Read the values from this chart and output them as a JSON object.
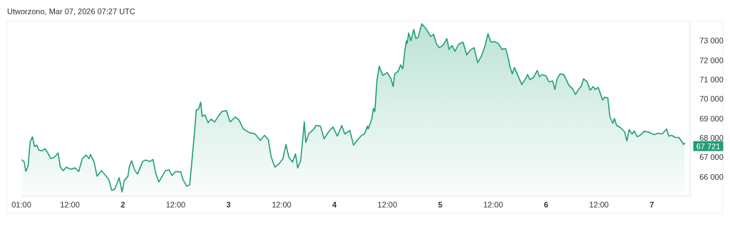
{
  "chart_data": {
    "type": "area",
    "title": "Utworzono, Mar 07, 2026 07:27 UTC",
    "x": [
      "2026-03-01T01:10",
      "2026-03-01T01:40",
      "2026-03-01T02:00",
      "2026-03-01T02:30",
      "2026-03-01T03:00",
      "2026-03-01T03:30",
      "2026-03-01T04:00",
      "2026-03-01T04:30",
      "2026-03-01T05:00",
      "2026-03-01T05:40",
      "2026-03-01T06:20",
      "2026-03-01T07:00",
      "2026-03-01T07:40",
      "2026-03-01T08:30",
      "2026-03-01T09:20",
      "2026-03-01T09:50",
      "2026-03-01T10:30",
      "2026-03-01T11:10",
      "2026-03-01T12:10",
      "2026-03-01T13:10",
      "2026-03-01T14:00",
      "2026-03-01T14:50",
      "2026-03-01T15:40",
      "2026-03-01T16:20",
      "2026-03-01T16:40",
      "2026-03-01T17:30",
      "2026-03-01T18:10",
      "2026-03-01T19:10",
      "2026-03-01T20:00",
      "2026-03-01T20:50",
      "2026-03-01T21:30",
      "2026-03-01T22:10",
      "2026-03-01T22:50",
      "2026-03-01T23:10",
      "2026-03-01T23:50",
      "2026-03-02T00:20",
      "2026-03-02T01:10",
      "2026-03-02T01:30",
      "2026-03-02T02:00",
      "2026-03-02T02:40",
      "2026-03-02T03:20",
      "2026-03-02T04:30",
      "2026-03-02T05:10",
      "2026-03-02T06:10",
      "2026-03-02T06:50",
      "2026-03-02T07:30",
      "2026-03-02T08:10",
      "2026-03-02T08:50",
      "2026-03-02T09:40",
      "2026-03-02T10:30",
      "2026-03-02T11:10",
      "2026-03-02T12:00",
      "2026-03-02T13:10",
      "2026-03-02T13:40",
      "2026-03-02T14:30",
      "2026-03-02T15:10",
      "2026-03-02T15:50",
      "2026-03-02T16:20",
      "2026-03-02T16:40",
      "2026-03-02T17:10",
      "2026-03-02T17:40",
      "2026-03-02T18:00",
      "2026-03-02T18:40",
      "2026-03-02T19:20",
      "2026-03-02T20:00",
      "2026-03-02T20:50",
      "2026-03-02T21:40",
      "2026-03-02T22:30",
      "2026-03-02T23:30",
      "2026-03-03T00:20",
      "2026-03-03T01:30",
      "2026-03-03T02:20",
      "2026-03-03T03:20",
      "2026-03-03T04:40",
      "2026-03-03T06:00",
      "2026-03-03T07:10",
      "2026-03-03T08:10",
      "2026-03-03T09:00",
      "2026-03-03T09:40",
      "2026-03-03T10:30",
      "2026-03-03T11:20",
      "2026-03-03T12:20",
      "2026-03-03T13:00",
      "2026-03-03T13:40",
      "2026-03-03T14:30",
      "2026-03-03T15:10",
      "2026-03-03T15:40",
      "2026-03-03T16:20",
      "2026-03-03T16:50",
      "2026-03-03T17:10",
      "2026-03-03T17:30",
      "2026-03-03T18:10",
      "2026-03-03T19:20",
      "2026-03-03T19:50",
      "2026-03-03T20:50",
      "2026-03-03T21:40",
      "2026-03-03T22:40",
      "2026-03-03T23:40",
      "2026-03-04T00:40",
      "2026-03-04T01:40",
      "2026-03-04T02:20",
      "2026-03-04T03:30",
      "2026-03-04T04:20",
      "2026-03-04T05:10",
      "2026-03-04T06:10",
      "2026-03-04T06:50",
      "2026-03-04T07:30",
      "2026-03-04T07:40",
      "2026-03-04T08:30",
      "2026-03-04T08:50",
      "2026-03-04T09:10",
      "2026-03-04T09:40",
      "2026-03-04T10:10",
      "2026-03-04T10:30",
      "2026-03-04T11:00",
      "2026-03-04T12:00",
      "2026-03-04T12:50",
      "2026-03-04T13:20",
      "2026-03-04T13:40",
      "2026-03-04T14:30",
      "2026-03-04T15:00",
      "2026-03-04T15:30",
      "2026-03-04T16:00",
      "2026-03-04T16:20",
      "2026-03-04T16:30",
      "2026-03-04T16:50",
      "2026-03-04T17:20",
      "2026-03-04T18:00",
      "2026-03-04T18:30",
      "2026-03-04T19:00",
      "2026-03-04T19:30",
      "2026-03-04T19:50",
      "2026-03-04T20:30",
      "2026-03-04T21:00",
      "2026-03-04T21:50",
      "2026-03-04T22:30",
      "2026-03-04T23:10",
      "2026-03-04T23:50",
      "2026-03-05T00:40",
      "2026-03-05T01:30",
      "2026-03-05T02:00",
      "2026-03-05T02:40",
      "2026-03-05T03:20",
      "2026-03-05T04:10",
      "2026-03-05T05:10",
      "2026-03-05T06:00",
      "2026-03-05T06:50",
      "2026-03-05T07:40",
      "2026-03-05T08:30",
      "2026-03-05T09:20",
      "2026-03-05T10:10",
      "2026-03-05T10:50",
      "2026-03-05T11:30",
      "2026-03-05T12:20",
      "2026-03-05T13:10",
      "2026-03-05T14:00",
      "2026-03-05T14:50",
      "2026-03-05T15:20",
      "2026-03-05T15:50",
      "2026-03-05T16:20",
      "2026-03-05T16:50",
      "2026-03-05T17:40",
      "2026-03-05T18:30",
      "2026-03-05T19:20",
      "2026-03-05T19:50",
      "2026-03-05T20:20",
      "2026-03-05T21:10",
      "2026-03-05T22:00",
      "2026-03-05T22:30",
      "2026-03-05T23:10",
      "2026-03-06T00:00",
      "2026-03-06T00:40",
      "2026-03-06T01:30",
      "2026-03-06T02:00",
      "2026-03-06T02:30",
      "2026-03-06T03:10",
      "2026-03-06T04:00",
      "2026-03-06T04:30",
      "2026-03-06T05:10",
      "2026-03-06T06:00",
      "2026-03-06T06:40",
      "2026-03-06T07:30",
      "2026-03-06T08:00",
      "2026-03-06T08:30",
      "2026-03-06T09:20",
      "2026-03-06T10:00",
      "2026-03-06T10:40",
      "2026-03-06T11:10",
      "2026-03-06T11:50",
      "2026-03-06T12:50",
      "2026-03-06T13:20",
      "2026-03-06T14:00",
      "2026-03-06T14:30",
      "2026-03-06T15:10",
      "2026-03-06T15:30",
      "2026-03-06T16:00",
      "2026-03-06T16:50",
      "2026-03-06T17:50",
      "2026-03-06T18:20",
      "2026-03-06T18:50",
      "2026-03-06T19:30",
      "2026-03-06T20:00",
      "2026-03-06T20:40",
      "2026-03-06T21:20",
      "2026-03-06T22:20",
      "2026-03-06T23:30",
      "2026-03-07T00:30",
      "2026-03-07T01:20",
      "2026-03-07T02:20",
      "2026-03-07T03:20",
      "2026-03-07T03:50",
      "2026-03-07T04:30",
      "2026-03-07T05:20",
      "2026-03-07T06:10",
      "2026-03-07T07:10",
      "2026-03-07T07:27"
    ],
    "series": [
      {
        "color": "#1f9e78",
        "values": [
          66860,
          66750,
          66270,
          66530,
          67800,
          68050,
          67550,
          67620,
          67360,
          67330,
          67440,
          67220,
          66930,
          67000,
          67220,
          66490,
          66310,
          66490,
          66380,
          66450,
          66270,
          66930,
          67110,
          66930,
          67150,
          66750,
          66020,
          66310,
          66090,
          65840,
          65290,
          65360,
          65730,
          65950,
          65220,
          65800,
          66020,
          66530,
          66820,
          66350,
          66130,
          66780,
          66860,
          66780,
          66890,
          66160,
          65730,
          65980,
          66310,
          66350,
          66060,
          66270,
          66240,
          65840,
          65510,
          65580,
          67180,
          68460,
          69440,
          69470,
          69840,
          69110,
          69180,
          68780,
          68960,
          68820,
          69110,
          69360,
          69400,
          68820,
          69070,
          68930,
          68460,
          68270,
          68200,
          67870,
          68130,
          67910,
          67000,
          66490,
          66640,
          66930,
          67660,
          67000,
          66750,
          67180,
          66450,
          66820,
          67980,
          68820,
          67760,
          68200,
          68460,
          68640,
          68600,
          67950,
          68310,
          68560,
          68090,
          68640,
          68200,
          68380,
          67620,
          67870,
          68130,
          68200,
          68600,
          68460,
          69000,
          69510,
          69360,
          71000,
          71690,
          71470,
          71220,
          71360,
          71040,
          70640,
          71290,
          71440,
          71760,
          71550,
          72530,
          73000,
          72860,
          73400,
          73000,
          73580,
          73110,
          73180,
          73620,
          73870,
          73690,
          73550,
          73220,
          73330,
          72820,
          72640,
          72780,
          73110,
          72560,
          72750,
          72460,
          72820,
          72930,
          72270,
          72530,
          72640,
          71870,
          72200,
          72750,
          73360,
          72930,
          72960,
          72860,
          72560,
          72600,
          72200,
          71650,
          71290,
          71620,
          71180,
          70750,
          71040,
          71260,
          71000,
          71110,
          71470,
          71150,
          71260,
          71180,
          70890,
          70930,
          70490,
          71040,
          71290,
          71260,
          71040,
          70710,
          70530,
          70240,
          70530,
          70670,
          71040,
          70890,
          70450,
          70640,
          70490,
          70600,
          69950,
          70090,
          70060,
          69070,
          68750,
          69000,
          68640,
          68530,
          68310,
          67840,
          68420,
          68200,
          68350,
          68060,
          68130,
          68350,
          68270,
          68160,
          68240,
          68200,
          68460,
          68090,
          68130,
          68020,
          68020,
          67660,
          67721
        ]
      }
    ],
    "xlim": [
      "2026-03-01T01:00",
      "2026-03-07T08:40"
    ],
    "xticks": [
      {
        "value": "2026-03-01T01:00",
        "label": "01:00"
      },
      {
        "value": "2026-03-01T12:00",
        "label": "12:00"
      },
      {
        "value": "2026-03-02T00:00",
        "label": "2"
      },
      {
        "value": "2026-03-02T12:00",
        "label": "12:00"
      },
      {
        "value": "2026-03-03T00:00",
        "label": "3"
      },
      {
        "value": "2026-03-03T12:00",
        "label": "12:00"
      },
      {
        "value": "2026-03-04T00:00",
        "label": "4"
      },
      {
        "value": "2026-03-04T12:00",
        "label": "12:00"
      },
      {
        "value": "2026-03-05T00:00",
        "label": "5"
      },
      {
        "value": "2026-03-05T12:00",
        "label": "12:00"
      },
      {
        "value": "2026-03-06T00:00",
        "label": "6"
      },
      {
        "value": "2026-03-06T12:00",
        "label": "12:00"
      },
      {
        "value": "2026-03-07T00:00",
        "label": "7"
      }
    ],
    "ylim": [
      65000,
      74000
    ],
    "yticks": [
      {
        "value": 66000,
        "label": "66 000"
      },
      {
        "value": 67000,
        "label": "67 000"
      },
      {
        "value": 68000,
        "label": "68 000"
      },
      {
        "value": 69000,
        "label": "69 000"
      },
      {
        "value": 70000,
        "label": "70 000"
      },
      {
        "value": 71000,
        "label": "71 000"
      },
      {
        "value": 72000,
        "label": "72 000"
      },
      {
        "value": 73000,
        "label": "73 000"
      }
    ],
    "annotations": [
      {
        "text": "67 721",
        "x": "2026-03-07T07:27",
        "y": 67721
      }
    ]
  }
}
